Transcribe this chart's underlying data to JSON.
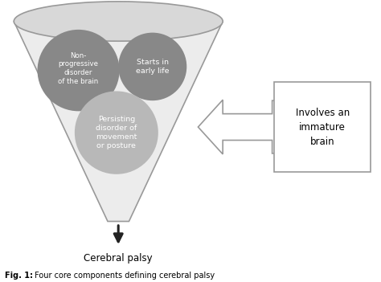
{
  "background_color": "#ffffff",
  "funnel_fill": "#ececec",
  "funnel_stroke": "#999999",
  "ellipse_top_fill": "#d8d8d8",
  "ellipse_top_stroke": "#999999",
  "circle_dark_fill": "#888888",
  "circle_light_fill": "#b8b8b8",
  "down_arrow_fill": "#222222",
  "circle1_text": "Non-\nprogressive\ndisorder\nof the brain",
  "circle2_text": "Starts in\nearly life",
  "circle3_text": "Persisting\ndisorder of\nmovement\nor posture",
  "box_text": "Involves an\nimmature\nbrain",
  "bottom_label": "Cerebral palsy",
  "fig_caption_bold": "Fig. 1:",
  "fig_caption_normal": " Four core components defining cerebral palsy"
}
